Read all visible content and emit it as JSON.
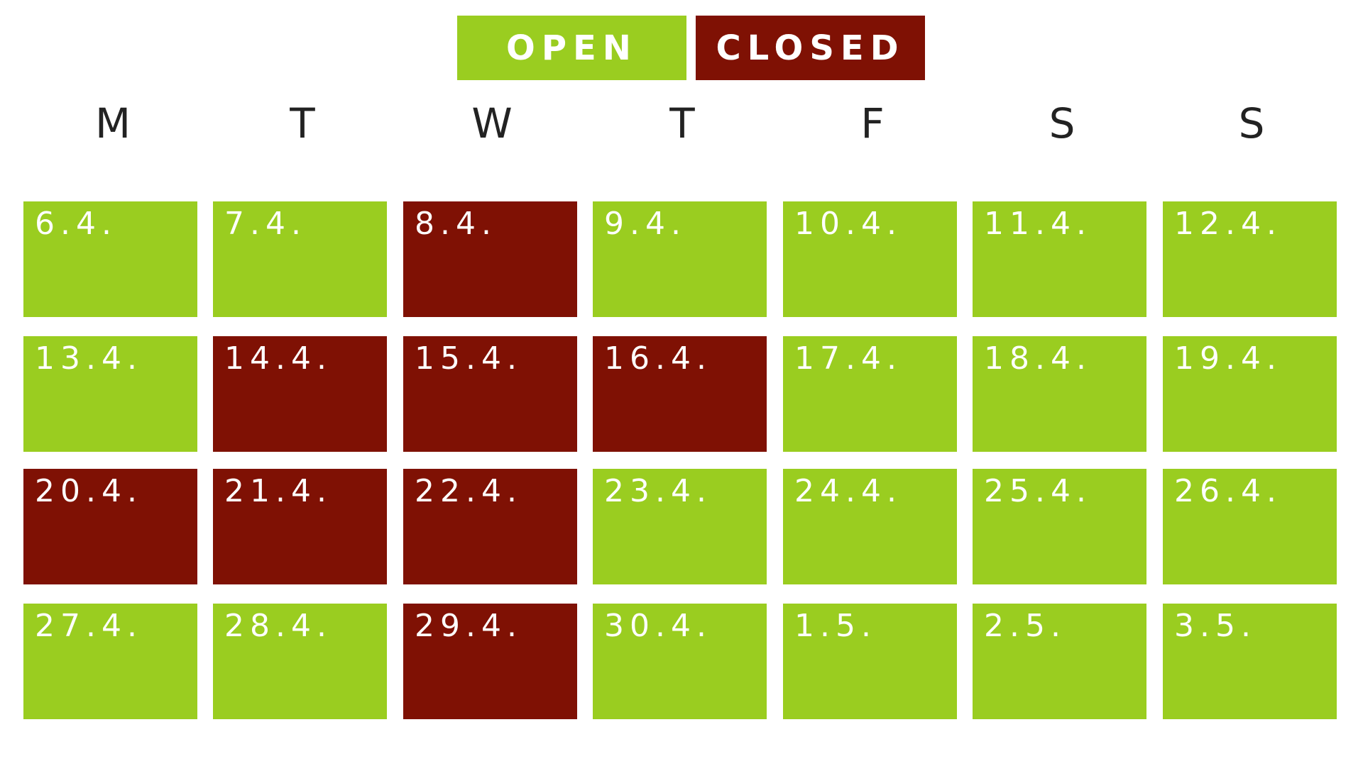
{
  "legend": [
    {
      "label": "OPEN",
      "color": "#9acd20"
    },
    {
      "label": "CLOSED",
      "color": "#7f1104"
    }
  ],
  "weekdays": [
    "M",
    "T",
    "W",
    "T",
    "F",
    "S",
    "S"
  ],
  "weeks": [
    [
      {
        "date": "6.4.",
        "closed": false
      },
      {
        "date": "7.4.",
        "closed": false
      },
      {
        "date": "8.4.",
        "closed": true
      },
      {
        "date": "9.4.",
        "closed": false
      },
      {
        "date": "10.4.",
        "closed": false
      },
      {
        "date": "11.4.",
        "closed": false
      },
      {
        "date": "12.4.",
        "closed": false
      }
    ],
    [
      {
        "date": "13.4.",
        "closed": false
      },
      {
        "date": "14.4.",
        "closed": true
      },
      {
        "date": "15.4.",
        "closed": true
      },
      {
        "date": "16.4.",
        "closed": true
      },
      {
        "date": "17.4.",
        "closed": false
      },
      {
        "date": "18.4.",
        "closed": false
      },
      {
        "date": "19.4.",
        "closed": false
      }
    ],
    [
      {
        "date": "20.4.",
        "closed": true
      },
      {
        "date": "21.4.",
        "closed": true
      },
      {
        "date": "22.4.",
        "closed": true
      },
      {
        "date": "23.4.",
        "closed": false
      },
      {
        "date": "24.4.",
        "closed": false
      },
      {
        "date": "25.4.",
        "closed": false
      },
      {
        "date": "26.4.",
        "closed": false
      }
    ],
    [
      {
        "date": "27.4.",
        "closed": false
      },
      {
        "date": "28.4.",
        "closed": false
      },
      {
        "date": "29.4.",
        "closed": true
      },
      {
        "date": "30.4.",
        "closed": false
      },
      {
        "date": "1.5.",
        "closed": false
      },
      {
        "date": "2.5.",
        "closed": false
      },
      {
        "date": "3.5.",
        "closed": false
      }
    ]
  ]
}
